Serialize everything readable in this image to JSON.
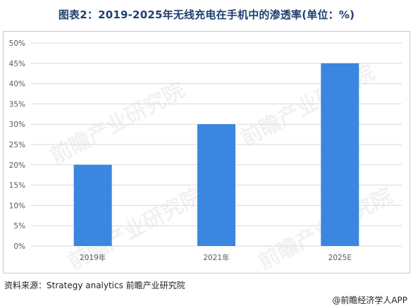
{
  "title": "图表2：2019-2025年无线充电在手机中的渗透率(单位：%)",
  "source": "资料来源：Strategy analytics 前瞻产业研究院",
  "app_credit": "@前瞻经济学人APP",
  "watermark": "前瞻产业研究院",
  "colors": {
    "bar": "#3a86e0",
    "grid": "#d9d9d9",
    "title": "#1f3f70"
  },
  "chart_data": {
    "type": "bar",
    "categories": [
      "2019年",
      "2021年",
      "2025E"
    ],
    "values": [
      20,
      30,
      45
    ],
    "ylim": [
      0,
      50
    ],
    "yticks": [
      "0%",
      "5%",
      "10%",
      "15%",
      "20%",
      "25%",
      "30%",
      "35%",
      "40%",
      "45%",
      "50%"
    ],
    "title": "",
    "xlabel": "",
    "ylabel": "",
    "grid": true,
    "legend": "none"
  }
}
